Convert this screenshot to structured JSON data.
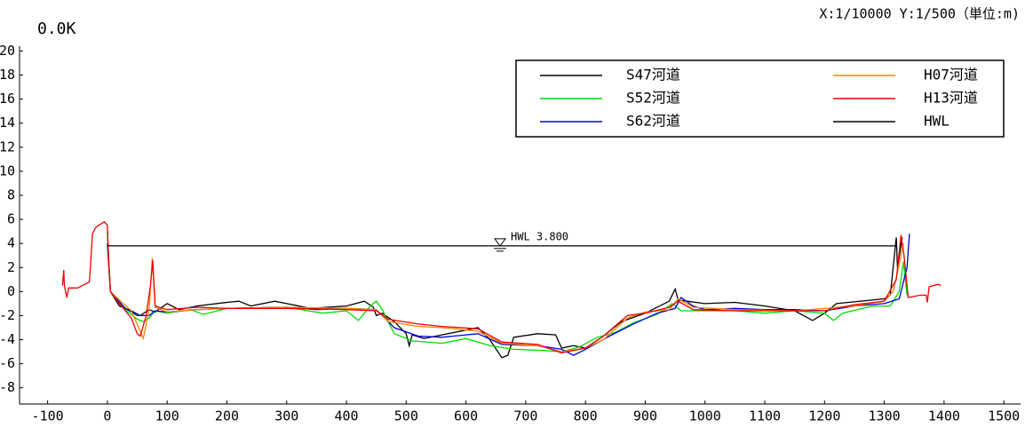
{
  "chart_data": {
    "type": "line",
    "title": "0.0K",
    "scale_note": "X:1/10000  Y:1/500（単位:m)",
    "annotation": "HWL  3.800",
    "xlim": [
      -147,
      1528
    ],
    "ylim": [
      -9.35,
      20.4
    ],
    "xticks": [
      -100,
      0,
      100,
      200,
      300,
      400,
      500,
      600,
      700,
      800,
      900,
      1000,
      1100,
      1200,
      1300,
      1400,
      1500
    ],
    "yticks": [
      -8,
      -6,
      -4,
      -2,
      0,
      2,
      4,
      6,
      8,
      10,
      12,
      14,
      16,
      18,
      20
    ],
    "grid": false,
    "legend": "upper right",
    "series": [
      {
        "name": "S47河道",
        "color": "#000000",
        "x": [
          0,
          5,
          20,
          40,
          55,
          70,
          80,
          100,
          120,
          150,
          200,
          220,
          240,
          280,
          300,
          340,
          400,
          430,
          445,
          450,
          460,
          480,
          500,
          505,
          510,
          530,
          560,
          620,
          640,
          660,
          670,
          680,
          720,
          750,
          760,
          780,
          800,
          830,
          860,
          900,
          940,
          950,
          955,
          970,
          1000,
          1050,
          1100,
          1150,
          1180,
          1200,
          1220,
          1300,
          1310,
          1320,
          1322,
          1330
        ],
        "values": [
          5,
          0,
          -1.2,
          -1.6,
          -2,
          -1.5,
          -1.7,
          -1,
          -1.5,
          -1.2,
          -0.9,
          -0.8,
          -1.2,
          -0.8,
          -1,
          -1.4,
          -1.2,
          -0.8,
          -1.3,
          -2,
          -1.8,
          -2.5,
          -3.5,
          -4.5,
          -3.6,
          -3.9,
          -3.6,
          -3,
          -4,
          -5.5,
          -5.3,
          -3.8,
          -3.5,
          -3.6,
          -4.7,
          -4.5,
          -4.7,
          -3.7,
          -2.5,
          -1.8,
          -0.8,
          0.2,
          -0.7,
          -0.8,
          -1,
          -0.9,
          -1.2,
          -1.6,
          -2.4,
          -1.8,
          -1,
          -0.6,
          -0.3,
          4.5,
          2,
          4.5
        ]
      },
      {
        "name": "S52河道",
        "color": "#00dd00",
        "x": [
          0,
          5,
          30,
          50,
          60,
          70,
          80,
          100,
          140,
          160,
          200,
          300,
          360,
          400,
          420,
          440,
          450,
          460,
          480,
          510,
          560,
          600,
          640,
          680,
          730,
          760,
          790,
          820,
          850,
          880,
          920,
          945,
          960,
          1000,
          1050,
          1100,
          1150,
          1200,
          1215,
          1230,
          1280,
          1310,
          1325,
          1332,
          1338
        ],
        "values": [
          4,
          0,
          -1.5,
          -2.3,
          -2.5,
          -2.2,
          -1.6,
          -1.8,
          -1.5,
          -1.9,
          -1.4,
          -1.3,
          -1.8,
          -1.6,
          -2.4,
          -1.2,
          -0.8,
          -1.5,
          -3.5,
          -4.1,
          -4.3,
          -3.9,
          -4.5,
          -4.8,
          -4.9,
          -5,
          -4.6,
          -3.8,
          -3.4,
          -2.6,
          -1.9,
          -1,
          -1.6,
          -1.6,
          -1.6,
          -1.8,
          -1.6,
          -1.8,
          -2.4,
          -1.8,
          -1.2,
          -1.2,
          0,
          2.5,
          -0.3
        ]
      },
      {
        "name": "S62河道",
        "color": "#0000dd",
        "x": [
          0,
          5,
          30,
          50,
          70,
          80,
          100,
          150,
          200,
          300,
          350,
          400,
          450,
          480,
          520,
          560,
          620,
          660,
          720,
          760,
          780,
          800,
          840,
          880,
          920,
          950,
          960,
          980,
          1000,
          1050,
          1100,
          1150,
          1200,
          1250,
          1300,
          1325,
          1338,
          1342
        ],
        "values": [
          4,
          0,
          -1.4,
          -2,
          -2,
          -1.6,
          -1.7,
          -1.5,
          -1.4,
          -1.3,
          -1.5,
          -1.4,
          -1.5,
          -3,
          -3.7,
          -3.8,
          -3.5,
          -4.4,
          -4.5,
          -4.8,
          -5.3,
          -4.8,
          -3.7,
          -2.7,
          -1.8,
          -1.4,
          -0.5,
          -1.2,
          -1.5,
          -1.4,
          -1.5,
          -1.5,
          -1.6,
          -1.2,
          -1,
          -0.6,
          2,
          4.8
        ]
      },
      {
        "name": "H07河道",
        "color": "#ee8800",
        "x": [
          0,
          5,
          20,
          40,
          55,
          60,
          70,
          75,
          80,
          100,
          150,
          200,
          300,
          400,
          450,
          470,
          520,
          560,
          620,
          660,
          720,
          760,
          800,
          830,
          870,
          900,
          940,
          955,
          980,
          1050,
          1150,
          1200,
          1250,
          1300,
          1315,
          1328,
          1332
        ],
        "values": [
          5,
          0,
          -0.7,
          -1.6,
          -3.3,
          -3.9,
          -1.5,
          2.8,
          -1.3,
          -1.7,
          -1.5,
          -1.4,
          -1.3,
          -1.4,
          -1.5,
          -2.5,
          -2.9,
          -3,
          -3.3,
          -4.3,
          -4.5,
          -5,
          -4.7,
          -4,
          -2.2,
          -1.7,
          -1.5,
          -0.6,
          -1.3,
          -1.5,
          -1.6,
          -1.4,
          -1.2,
          -0.8,
          0,
          3,
          4
        ]
      },
      {
        "name": "H13河道",
        "color": "#ee0000",
        "x": [
          -75,
          -73,
          -72,
          -68,
          -65,
          -60,
          -50,
          -30,
          -25,
          -20,
          -15,
          -5,
          0,
          2,
          5,
          20,
          40,
          50,
          55,
          65,
          72,
          76,
          80,
          100,
          150,
          200,
          300,
          400,
          450,
          470,
          520,
          560,
          620,
          660,
          720,
          760,
          800,
          830,
          870,
          900,
          940,
          955,
          980,
          1050,
          1100,
          1150,
          1200,
          1250,
          1300,
          1320,
          1328,
          1333,
          1340,
          1360,
          1370,
          1372,
          1375,
          1390,
          1395
        ],
        "values": [
          0.5,
          1.8,
          0.5,
          -0.5,
          0.3,
          0.3,
          0.3,
          0.8,
          4.8,
          5.3,
          5.5,
          5.8,
          5.5,
          2.5,
          0,
          -1,
          -2.2,
          -3.5,
          -3.7,
          -2,
          0.5,
          2.6,
          -1.2,
          -1.5,
          -1.3,
          -1.4,
          -1.4,
          -1.5,
          -1.6,
          -2.3,
          -2.7,
          -2.9,
          -3.1,
          -4.2,
          -4.4,
          -5.1,
          -4.7,
          -3.7,
          -2,
          -1.8,
          -1.3,
          -0.8,
          -1.5,
          -1.6,
          -1.6,
          -1.6,
          -1.6,
          -1.1,
          -0.8,
          1,
          4.7,
          3,
          -0.5,
          -0.3,
          -0.3,
          -0.9,
          0.4,
          0.6,
          0.5
        ]
      },
      {
        "name": "HWL",
        "color": "#000000",
        "x": [
          0,
          1320
        ],
        "values": [
          3.8,
          3.8
        ]
      }
    ]
  }
}
